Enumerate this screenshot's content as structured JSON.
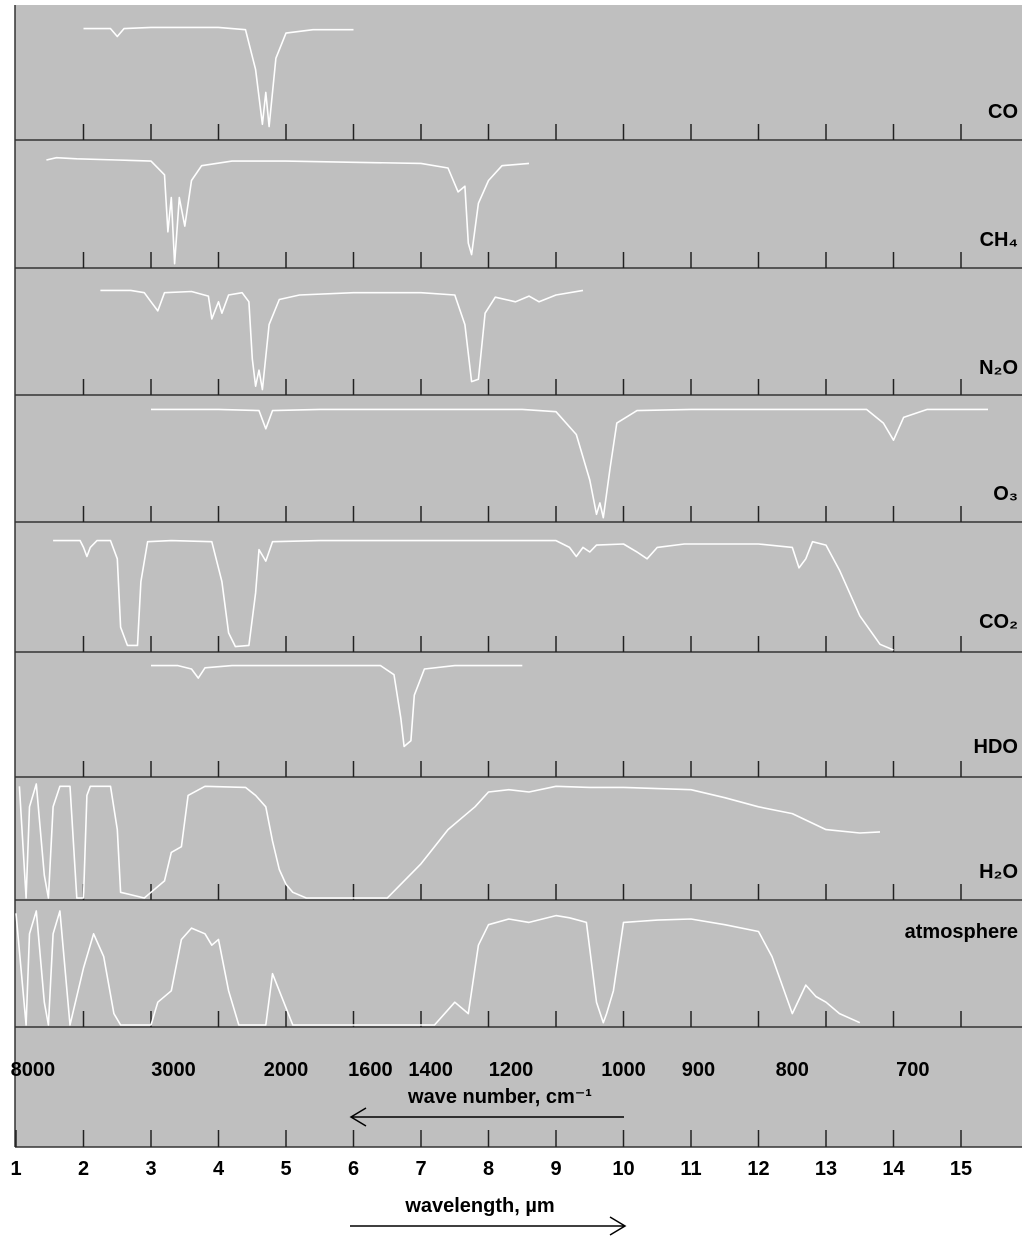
{
  "chart_data": {
    "type": "line",
    "title": "",
    "xlabel": "wavelength, µm",
    "x2label": "wave number, cm⁻¹",
    "xlim": [
      1,
      16
    ],
    "ylim": [
      0,
      1
    ],
    "y_meaning": "transmission (top of panel = 1, bottom = 0)",
    "wavelength_ticks": [
      "1",
      "2",
      "3",
      "4",
      "5",
      "6",
      "7",
      "8",
      "9",
      "10",
      "11",
      "12",
      "13",
      "14",
      "15"
    ],
    "wavenumber_ticks": [
      {
        "label": "8000",
        "um": 1.25
      },
      {
        "label": "3000",
        "um": 3.333
      },
      {
        "label": "2000",
        "um": 5.0
      },
      {
        "label": "1600",
        "um": 6.25
      },
      {
        "label": "1400",
        "um": 7.143
      },
      {
        "label": "1200",
        "um": 8.333
      },
      {
        "label": "1000",
        "um": 10.0
      },
      {
        "label": "900",
        "um": 11.111
      },
      {
        "label": "800",
        "um": 12.5
      },
      {
        "label": "700",
        "um": 14.286
      }
    ],
    "series": [
      {
        "name": "CO",
        "points": [
          [
            2.0,
            0.96
          ],
          [
            2.4,
            0.96
          ],
          [
            2.5,
            0.89
          ],
          [
            2.6,
            0.96
          ],
          [
            3.0,
            0.97
          ],
          [
            4.0,
            0.97
          ],
          [
            4.4,
            0.95
          ],
          [
            4.55,
            0.6
          ],
          [
            4.65,
            0.12
          ],
          [
            4.7,
            0.4
          ],
          [
            4.75,
            0.1
          ],
          [
            4.85,
            0.7
          ],
          [
            5.0,
            0.92
          ],
          [
            5.4,
            0.95
          ],
          [
            6.0,
            0.95
          ]
        ]
      },
      {
        "name": "CH₄",
        "points": [
          [
            1.45,
            0.93
          ],
          [
            1.6,
            0.95
          ],
          [
            1.9,
            0.94
          ],
          [
            2.5,
            0.93
          ],
          [
            3.0,
            0.92
          ],
          [
            3.2,
            0.8
          ],
          [
            3.25,
            0.3
          ],
          [
            3.3,
            0.6
          ],
          [
            3.35,
            0.02
          ],
          [
            3.42,
            0.6
          ],
          [
            3.5,
            0.35
          ],
          [
            3.6,
            0.75
          ],
          [
            3.75,
            0.88
          ],
          [
            4.2,
            0.92
          ],
          [
            5.0,
            0.92
          ],
          [
            6.0,
            0.91
          ],
          [
            7.0,
            0.9
          ],
          [
            7.4,
            0.86
          ],
          [
            7.55,
            0.65
          ],
          [
            7.65,
            0.7
          ],
          [
            7.7,
            0.2
          ],
          [
            7.75,
            0.1
          ],
          [
            7.85,
            0.55
          ],
          [
            8.0,
            0.75
          ],
          [
            8.2,
            0.88
          ],
          [
            8.6,
            0.9
          ]
        ]
      },
      {
        "name": "N₂O",
        "points": [
          [
            2.25,
            0.9
          ],
          [
            2.7,
            0.9
          ],
          [
            2.9,
            0.88
          ],
          [
            3.0,
            0.8
          ],
          [
            3.1,
            0.72
          ],
          [
            3.2,
            0.88
          ],
          [
            3.6,
            0.89
          ],
          [
            3.85,
            0.85
          ],
          [
            3.9,
            0.65
          ],
          [
            4.0,
            0.8
          ],
          [
            4.05,
            0.7
          ],
          [
            4.15,
            0.86
          ],
          [
            4.35,
            0.88
          ],
          [
            4.45,
            0.8
          ],
          [
            4.5,
            0.3
          ],
          [
            4.55,
            0.06
          ],
          [
            4.6,
            0.2
          ],
          [
            4.65,
            0.03
          ],
          [
            4.75,
            0.6
          ],
          [
            4.9,
            0.82
          ],
          [
            5.2,
            0.86
          ],
          [
            6.0,
            0.88
          ],
          [
            7.0,
            0.88
          ],
          [
            7.5,
            0.86
          ],
          [
            7.65,
            0.6
          ],
          [
            7.75,
            0.1
          ],
          [
            7.85,
            0.12
          ],
          [
            7.95,
            0.7
          ],
          [
            8.1,
            0.84
          ],
          [
            8.4,
            0.8
          ],
          [
            8.6,
            0.85
          ],
          [
            8.75,
            0.8
          ],
          [
            9.0,
            0.86
          ],
          [
            9.4,
            0.9
          ]
        ]
      },
      {
        "name": "O₃",
        "points": [
          [
            3.0,
            0.97
          ],
          [
            4.0,
            0.97
          ],
          [
            4.6,
            0.96
          ],
          [
            4.7,
            0.8
          ],
          [
            4.8,
            0.96
          ],
          [
            5.5,
            0.97
          ],
          [
            7.0,
            0.97
          ],
          [
            8.5,
            0.97
          ],
          [
            9.0,
            0.95
          ],
          [
            9.3,
            0.75
          ],
          [
            9.5,
            0.35
          ],
          [
            9.6,
            0.05
          ],
          [
            9.65,
            0.15
          ],
          [
            9.7,
            0.02
          ],
          [
            9.8,
            0.45
          ],
          [
            9.9,
            0.85
          ],
          [
            10.2,
            0.96
          ],
          [
            11.0,
            0.97
          ],
          [
            12.5,
            0.97
          ],
          [
            13.6,
            0.97
          ],
          [
            13.85,
            0.85
          ],
          [
            14.0,
            0.7
          ],
          [
            14.15,
            0.9
          ],
          [
            14.5,
            0.97
          ],
          [
            15.4,
            0.97
          ]
        ]
      },
      {
        "name": "CO₂",
        "points": [
          [
            1.55,
            0.96
          ],
          [
            1.95,
            0.96
          ],
          [
            2.0,
            0.9
          ],
          [
            2.05,
            0.82
          ],
          [
            2.1,
            0.9
          ],
          [
            2.2,
            0.96
          ],
          [
            2.4,
            0.96
          ],
          [
            2.5,
            0.8
          ],
          [
            2.55,
            0.2
          ],
          [
            2.65,
            0.04
          ],
          [
            2.8,
            0.04
          ],
          [
            2.85,
            0.6
          ],
          [
            2.95,
            0.95
          ],
          [
            3.3,
            0.96
          ],
          [
            3.9,
            0.95
          ],
          [
            4.05,
            0.6
          ],
          [
            4.15,
            0.15
          ],
          [
            4.25,
            0.03
          ],
          [
            4.45,
            0.04
          ],
          [
            4.55,
            0.5
          ],
          [
            4.6,
            0.88
          ],
          [
            4.7,
            0.78
          ],
          [
            4.8,
            0.95
          ],
          [
            5.5,
            0.96
          ],
          [
            7.0,
            0.96
          ],
          [
            8.0,
            0.96
          ],
          [
            9.0,
            0.96
          ],
          [
            9.2,
            0.9
          ],
          [
            9.3,
            0.82
          ],
          [
            9.4,
            0.9
          ],
          [
            9.5,
            0.86
          ],
          [
            9.6,
            0.92
          ],
          [
            10.0,
            0.93
          ],
          [
            10.2,
            0.86
          ],
          [
            10.35,
            0.8
          ],
          [
            10.5,
            0.9
          ],
          [
            10.9,
            0.93
          ],
          [
            12.0,
            0.93
          ],
          [
            12.5,
            0.9
          ],
          [
            12.6,
            0.72
          ],
          [
            12.7,
            0.8
          ],
          [
            12.8,
            0.95
          ],
          [
            13.0,
            0.92
          ],
          [
            13.2,
            0.7
          ],
          [
            13.5,
            0.3
          ],
          [
            13.8,
            0.05
          ],
          [
            14.0,
            0.0
          ]
        ]
      },
      {
        "name": "HDO",
        "points": [
          [
            3.0,
            0.96
          ],
          [
            3.4,
            0.96
          ],
          [
            3.6,
            0.93
          ],
          [
            3.7,
            0.85
          ],
          [
            3.8,
            0.94
          ],
          [
            4.2,
            0.96
          ],
          [
            5.0,
            0.96
          ],
          [
            6.0,
            0.96
          ],
          [
            6.4,
            0.96
          ],
          [
            6.6,
            0.88
          ],
          [
            6.7,
            0.5
          ],
          [
            6.75,
            0.25
          ],
          [
            6.85,
            0.3
          ],
          [
            6.9,
            0.7
          ],
          [
            7.05,
            0.93
          ],
          [
            7.5,
            0.96
          ],
          [
            8.5,
            0.96
          ]
        ]
      },
      {
        "name": "H₂O",
        "points": [
          [
            1.05,
            0.98
          ],
          [
            1.15,
            0.0
          ],
          [
            1.2,
            0.8
          ],
          [
            1.3,
            1.0
          ],
          [
            1.42,
            0.2
          ],
          [
            1.48,
            0.0
          ],
          [
            1.55,
            0.8
          ],
          [
            1.65,
            0.98
          ],
          [
            1.8,
            0.98
          ],
          [
            1.9,
            0.0
          ],
          [
            2.0,
            0.0
          ],
          [
            2.05,
            0.9
          ],
          [
            2.1,
            0.98
          ],
          [
            2.4,
            0.98
          ],
          [
            2.5,
            0.6
          ],
          [
            2.55,
            0.05
          ],
          [
            2.9,
            0.0
          ],
          [
            3.0,
            0.05
          ],
          [
            3.2,
            0.15
          ],
          [
            3.3,
            0.4
          ],
          [
            3.45,
            0.45
          ],
          [
            3.55,
            0.9
          ],
          [
            3.8,
            0.98
          ],
          [
            4.4,
            0.97
          ],
          [
            4.55,
            0.9
          ],
          [
            4.7,
            0.8
          ],
          [
            4.8,
            0.5
          ],
          [
            4.9,
            0.25
          ],
          [
            5.0,
            0.12
          ],
          [
            5.1,
            0.05
          ],
          [
            5.3,
            0.0
          ],
          [
            6.5,
            0.0
          ],
          [
            7.0,
            0.3
          ],
          [
            7.2,
            0.45
          ],
          [
            7.4,
            0.6
          ],
          [
            7.6,
            0.7
          ],
          [
            7.8,
            0.8
          ],
          [
            8.0,
            0.93
          ],
          [
            8.3,
            0.95
          ],
          [
            8.6,
            0.93
          ],
          [
            9.0,
            0.98
          ],
          [
            9.5,
            0.97
          ],
          [
            10.0,
            0.97
          ],
          [
            10.5,
            0.96
          ],
          [
            11.0,
            0.95
          ],
          [
            11.5,
            0.88
          ],
          [
            12.0,
            0.8
          ],
          [
            12.5,
            0.74
          ],
          [
            13.0,
            0.6
          ],
          [
            13.5,
            0.57
          ],
          [
            13.8,
            0.58
          ]
        ]
      },
      {
        "name": "atmosphere",
        "points": [
          [
            1.0,
            0.98
          ],
          [
            1.15,
            0.0
          ],
          [
            1.2,
            0.8
          ],
          [
            1.3,
            1.0
          ],
          [
            1.42,
            0.2
          ],
          [
            1.48,
            0.0
          ],
          [
            1.55,
            0.8
          ],
          [
            1.65,
            1.0
          ],
          [
            1.8,
            0.0
          ],
          [
            2.0,
            0.5
          ],
          [
            2.15,
            0.8
          ],
          [
            2.3,
            0.6
          ],
          [
            2.45,
            0.1
          ],
          [
            2.55,
            0.0
          ],
          [
            3.0,
            0.0
          ],
          [
            3.1,
            0.2
          ],
          [
            3.3,
            0.3
          ],
          [
            3.45,
            0.75
          ],
          [
            3.6,
            0.85
          ],
          [
            3.8,
            0.8
          ],
          [
            3.9,
            0.7
          ],
          [
            4.0,
            0.75
          ],
          [
            4.15,
            0.3
          ],
          [
            4.3,
            0.0
          ],
          [
            4.7,
            0.0
          ],
          [
            4.8,
            0.45
          ],
          [
            4.9,
            0.3
          ],
          [
            5.1,
            0.0
          ],
          [
            7.2,
            0.0
          ],
          [
            7.5,
            0.2
          ],
          [
            7.7,
            0.1
          ],
          [
            7.85,
            0.7
          ],
          [
            8.0,
            0.88
          ],
          [
            8.3,
            0.93
          ],
          [
            8.6,
            0.9
          ],
          [
            9.0,
            0.96
          ],
          [
            9.2,
            0.94
          ],
          [
            9.45,
            0.9
          ],
          [
            9.6,
            0.2
          ],
          [
            9.7,
            0.02
          ],
          [
            9.75,
            0.1
          ],
          [
            9.85,
            0.3
          ],
          [
            10.0,
            0.9
          ],
          [
            10.5,
            0.92
          ],
          [
            11.0,
            0.93
          ],
          [
            11.5,
            0.88
          ],
          [
            12.0,
            0.82
          ],
          [
            12.2,
            0.6
          ],
          [
            12.5,
            0.1
          ],
          [
            12.7,
            0.35
          ],
          [
            12.85,
            0.25
          ],
          [
            13.0,
            0.2
          ],
          [
            13.2,
            0.1
          ],
          [
            13.5,
            0.02
          ]
        ]
      }
    ],
    "panel_labels": [
      "CO",
      "CH₄",
      "N₂O",
      "O₃",
      "CO₂",
      "HDO",
      "H₂O",
      "atmosphere"
    ]
  }
}
